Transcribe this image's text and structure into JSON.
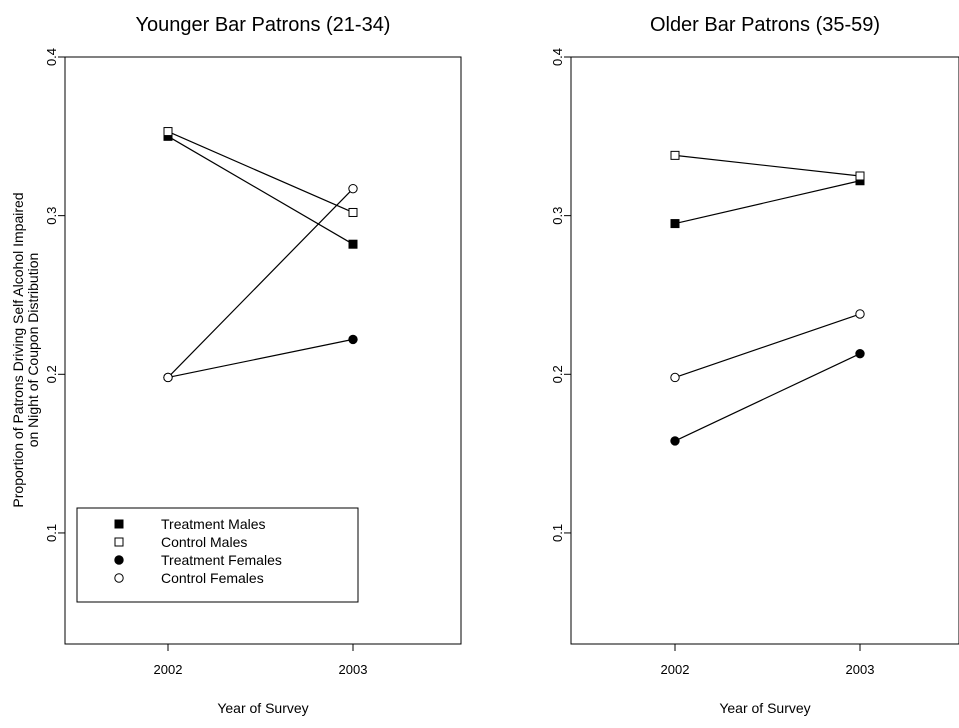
{
  "chart_data": [
    {
      "type": "line",
      "title": "Younger Bar Patrons (21-34)",
      "xlabel": "Year of Survey",
      "ylabel_lines": [
        "Proportion of Patrons Driving Self Alcohol Impaired",
        "on Night of Coupon Distribution"
      ],
      "categories": [
        "2002",
        "2003"
      ],
      "ylim": [
        0.03,
        0.4
      ],
      "yticks": [
        "0.1",
        "0.2",
        "0.3",
        "0.4"
      ],
      "legend": {
        "placement": "bottom-left"
      },
      "series": [
        {
          "name": "Treatment Males",
          "marker": "square-filled",
          "values": [
            0.35,
            0.282
          ]
        },
        {
          "name": "Control Males",
          "marker": "square-open",
          "values": [
            0.353,
            0.302
          ]
        },
        {
          "name": "Treatment Females",
          "marker": "circle-filled",
          "values": [
            0.198,
            0.222
          ]
        },
        {
          "name": "Control Females",
          "marker": "circle-open",
          "values": [
            0.198,
            0.317
          ]
        }
      ]
    },
    {
      "type": "line",
      "title": "Older Bar Patrons (35-59)",
      "xlabel": "Year of Survey",
      "ylabel_lines": [],
      "categories": [
        "2002",
        "2003"
      ],
      "ylim": [
        0.03,
        0.4
      ],
      "yticks": [
        "0.1",
        "0.2",
        "0.3",
        "0.4"
      ],
      "legend": {
        "placement": "none"
      },
      "series": [
        {
          "name": "Treatment Males",
          "marker": "square-filled",
          "values": [
            0.295,
            0.322
          ]
        },
        {
          "name": "Control Males",
          "marker": "square-open",
          "values": [
            0.338,
            0.325
          ]
        },
        {
          "name": "Treatment Females",
          "marker": "circle-filled",
          "values": [
            0.158,
            0.213
          ]
        },
        {
          "name": "Control Females",
          "marker": "circle-open",
          "values": [
            0.198,
            0.238
          ]
        }
      ]
    }
  ]
}
